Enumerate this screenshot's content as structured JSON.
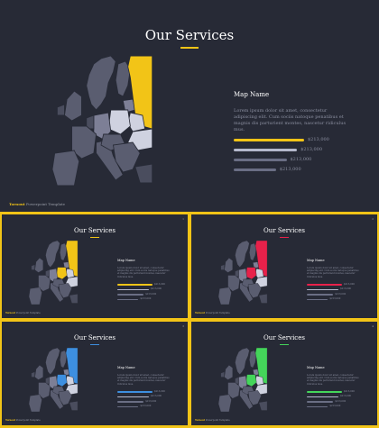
{
  "slide": {
    "title": "Our Services",
    "map_name": "Map Name",
    "description": "Lorem ipsum dolor sit amet, consectetur adipiscing elit. Cum sociis natoque penatibus et magnis dis parturient montes, nascetur ridiculus mus.",
    "bars": [
      {
        "value": "$213,000",
        "level": 1.0
      },
      {
        "value": "$213,000",
        "level": 0.9
      },
      {
        "value": "$213,000",
        "level": 0.75
      },
      {
        "value": "$213,000",
        "level": 0.6
      }
    ],
    "brand": "Tornout",
    "brand_subtitle": "Powerpoint Template"
  },
  "variants": [
    {
      "page": "",
      "accent": "#f2c417"
    },
    {
      "page": "1",
      "accent": "#f2c417"
    },
    {
      "page": "2",
      "accent": "#e8214a"
    },
    {
      "page": "3",
      "accent": "#3d8fe0"
    },
    {
      "page": "4",
      "accent": "#44d65a"
    }
  ],
  "colors": {
    "background": "#272a36",
    "frame": "#f2c417",
    "land": "#5a5d70",
    "land_dark": "#4a4d5e",
    "highlight_light": "#cfd2e0",
    "highlight_mid": "#7d7f96",
    "bar_base": "#6a6e84",
    "bar_pale": "#b5b9cc"
  },
  "icons": [
    "europe-map"
  ]
}
